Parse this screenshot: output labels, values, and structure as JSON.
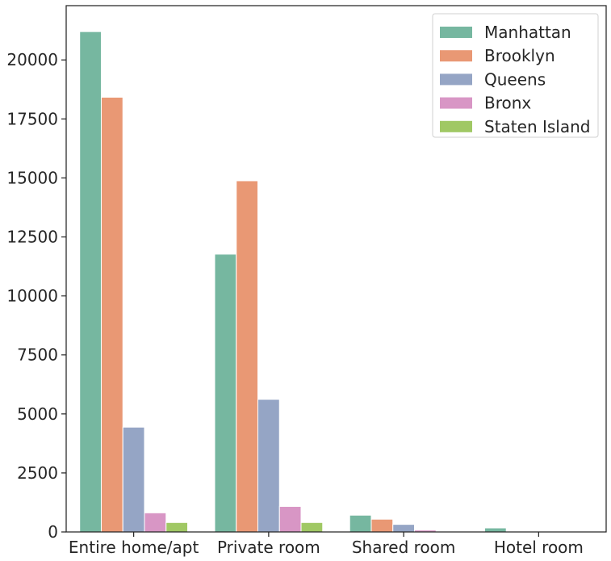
{
  "chart_data": {
    "type": "bar",
    "title": "",
    "xlabel": "",
    "ylabel": "",
    "categories": [
      "Entire home/apt",
      "Private room",
      "Shared room",
      "Hotel room"
    ],
    "ylim": [
      0,
      22300
    ],
    "yticks": [
      0,
      2500,
      5000,
      7500,
      10000,
      12500,
      15000,
      17500,
      20000
    ],
    "legend_position": "top-right",
    "grid": false,
    "series": [
      {
        "name": "Manhattan",
        "color": "#76b7a0",
        "values": [
          21200,
          11770,
          710,
          170
        ]
      },
      {
        "name": "Brooklyn",
        "color": "#e99874",
        "values": [
          18420,
          14880,
          540,
          0
        ]
      },
      {
        "name": "Queens",
        "color": "#95a5c5",
        "values": [
          4440,
          5620,
          320,
          0
        ]
      },
      {
        "name": "Bronx",
        "color": "#d896c5",
        "values": [
          810,
          1080,
          80,
          0
        ]
      },
      {
        "name": "Staten Island",
        "color": "#a0c864",
        "values": [
          400,
          400,
          0,
          0
        ]
      }
    ]
  }
}
